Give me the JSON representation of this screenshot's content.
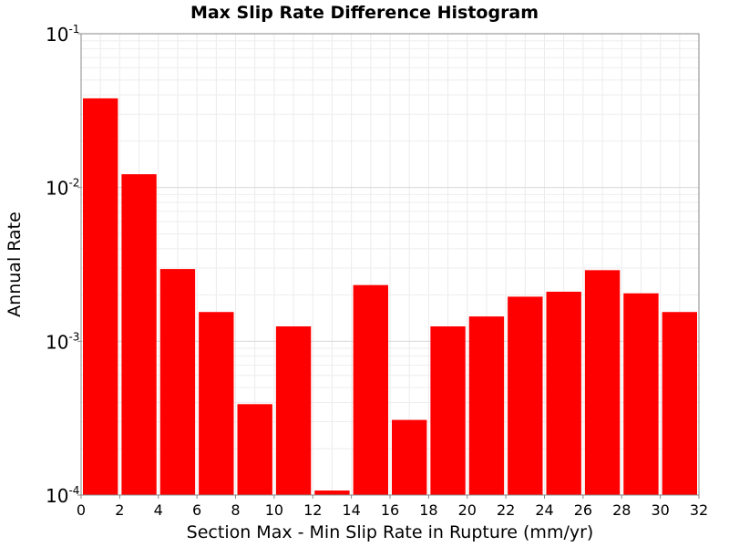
{
  "chart_data": {
    "type": "bar",
    "title": "Max Slip Rate Difference Histogram",
    "xlabel": "Section Max - Min Slip Rate in Rupture (mm/yr)",
    "ylabel": "Annual Rate",
    "xlim": [
      0,
      32
    ],
    "ylim": [
      0.0001,
      0.1
    ],
    "yscale": "log",
    "grid": true,
    "bar_color": "#ff0000",
    "bin_width": 2,
    "x_ticks": [
      "0",
      "2",
      "4",
      "6",
      "8",
      "10",
      "12",
      "14",
      "16",
      "18",
      "20",
      "22",
      "24",
      "26",
      "28",
      "30",
      "32"
    ],
    "y_ticks": [
      {
        "base": "10",
        "exp": "-4"
      },
      {
        "base": "10",
        "exp": "-3"
      },
      {
        "base": "10",
        "exp": "-2"
      },
      {
        "base": "10",
        "exp": "-1"
      }
    ],
    "bins": [
      {
        "x": 1,
        "value": 0.038
      },
      {
        "x": 3,
        "value": 0.0122
      },
      {
        "x": 5,
        "value": 0.00295
      },
      {
        "x": 7,
        "value": 0.00155
      },
      {
        "x": 9,
        "value": 0.00039
      },
      {
        "x": 11,
        "value": 0.00125
      },
      {
        "x": 13,
        "value": 0.000107
      },
      {
        "x": 15,
        "value": 0.00232
      },
      {
        "x": 17,
        "value": 0.000308
      },
      {
        "x": 19,
        "value": 0.00125
      },
      {
        "x": 21,
        "value": 0.00145
      },
      {
        "x": 23,
        "value": 0.00195
      },
      {
        "x": 25,
        "value": 0.0021
      },
      {
        "x": 27,
        "value": 0.0029
      },
      {
        "x": 29,
        "value": 0.00205
      },
      {
        "x": 31,
        "value": 0.00155
      }
    ]
  }
}
